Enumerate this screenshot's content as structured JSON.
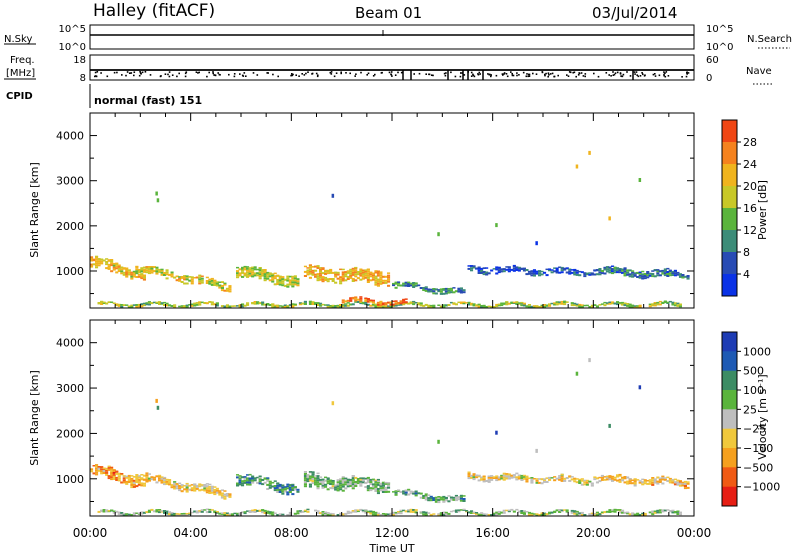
{
  "header": {
    "station": "Halley (fitACF)",
    "beam": "Beam 01",
    "date": "03/Jul/2014"
  },
  "nsky_panel": {
    "left_label": "N.Sky",
    "left_ticks": [
      "10^5",
      "10^0"
    ],
    "right_label": "N.Search",
    "right_ticks": [
      "10^5",
      "10^0"
    ]
  },
  "freq_panel": {
    "left_label_1": "Freq.",
    "left_label_2": "[MHz]",
    "left_ticks": [
      "18",
      "8"
    ],
    "right_label": "Nave",
    "right_ticks": [
      "60",
      "0"
    ]
  },
  "cpid": {
    "label": "CPID",
    "value": "normal (fast) 151"
  },
  "x_axis": {
    "label": "Time UT",
    "ticks": [
      "00:00",
      "04:00",
      "08:00",
      "12:00",
      "16:00",
      "20:00",
      "00:00"
    ]
  },
  "chart_data": [
    {
      "type": "heatmap",
      "name": "power",
      "ylabel": "Slant Range [km]",
      "xlabel": "",
      "x_range_hours": [
        0,
        24
      ],
      "ylim": [
        180,
        4500
      ],
      "y_ticks": [
        1000,
        2000,
        3000,
        4000
      ],
      "colorbar": {
        "label": "Power [dB]",
        "range": [
          0,
          32
        ],
        "tick_labels": [
          "4",
          "8",
          "12",
          "16",
          "20",
          "24",
          "28"
        ],
        "colors": [
          "#0a32e6",
          "#284bb4",
          "#3c8c78",
          "#5ab43c",
          "#c8c828",
          "#f0b41e",
          "#f5821e",
          "#f04614"
        ]
      },
      "regions": [
        {
          "t0": 0.0,
          "t1": 2.2,
          "r_start": 1200,
          "r_end": 900,
          "thick": 260,
          "level": 0.65
        },
        {
          "t0": 1.8,
          "t1": 5.5,
          "r_start": 1050,
          "r_end": 650,
          "thick": 200,
          "level": 0.6
        },
        {
          "t0": 5.8,
          "t1": 8.2,
          "r_start": 1000,
          "r_end": 760,
          "thick": 250,
          "level": 0.55
        },
        {
          "t0": 8.5,
          "t1": 11.8,
          "r_start": 950,
          "r_end": 850,
          "thick": 330,
          "level": 0.68
        },
        {
          "t0": 12.0,
          "t1": 14.8,
          "r_start": 700,
          "r_end": 520,
          "thick": 140,
          "level": 0.3
        },
        {
          "t0": 15.0,
          "t1": 20.0,
          "r_start": 1050,
          "r_end": 950,
          "thick": 160,
          "level": 0.18
        },
        {
          "t0": 20.0,
          "t1": 23.8,
          "r_start": 1000,
          "r_end": 900,
          "thick": 180,
          "level": 0.28
        },
        {
          "t0": 0.3,
          "t1": 23.5,
          "r_start": 250,
          "r_end": 250,
          "thick": 90,
          "level": 0.5
        },
        {
          "t0": 10.0,
          "t1": 12.5,
          "r_start": 350,
          "r_end": 300,
          "thick": 110,
          "level": 0.85
        }
      ]
    },
    {
      "type": "heatmap",
      "name": "velocity",
      "ylabel": "Slant Range [km]",
      "xlabel": "Time UT",
      "x_range_hours": [
        0,
        24
      ],
      "ylim": [
        180,
        4500
      ],
      "y_ticks": [
        1000,
        2000,
        3000,
        4000
      ],
      "colorbar": {
        "label": "Velocity [m s⁻¹]",
        "tick_labels": [
          "1000",
          "500",
          "100",
          "25",
          "−25",
          "−100",
          "−500",
          "−1000"
        ],
        "colors": [
          "#1e3cb4",
          "#1e5ab4",
          "#3c8c64",
          "#5ab43c",
          "#bebebe",
          "#f0c83c",
          "#f5a01e",
          "#f05a14",
          "#e61e14"
        ]
      },
      "regions": [
        {
          "t0": 0.0,
          "t1": 2.2,
          "r_start": 1200,
          "r_end": 900,
          "thick": 260,
          "level": 0.72
        },
        {
          "t0": 1.8,
          "t1": 5.5,
          "r_start": 1050,
          "r_end": 650,
          "thick": 200,
          "level": 0.6
        },
        {
          "t0": 5.8,
          "t1": 8.2,
          "r_start": 1000,
          "r_end": 760,
          "thick": 250,
          "level": 0.3
        },
        {
          "t0": 8.5,
          "t1": 11.8,
          "r_start": 950,
          "r_end": 850,
          "thick": 330,
          "level": 0.4
        },
        {
          "t0": 12.0,
          "t1": 14.8,
          "r_start": 700,
          "r_end": 520,
          "thick": 140,
          "level": 0.35
        },
        {
          "t0": 15.0,
          "t1": 20.0,
          "r_start": 1050,
          "r_end": 950,
          "thick": 160,
          "level": 0.58
        },
        {
          "t0": 20.0,
          "t1": 23.8,
          "r_start": 1000,
          "r_end": 900,
          "thick": 180,
          "level": 0.62
        },
        {
          "t0": 0.3,
          "t1": 23.5,
          "r_start": 250,
          "r_end": 250,
          "thick": 90,
          "level": 0.45
        }
      ]
    }
  ]
}
